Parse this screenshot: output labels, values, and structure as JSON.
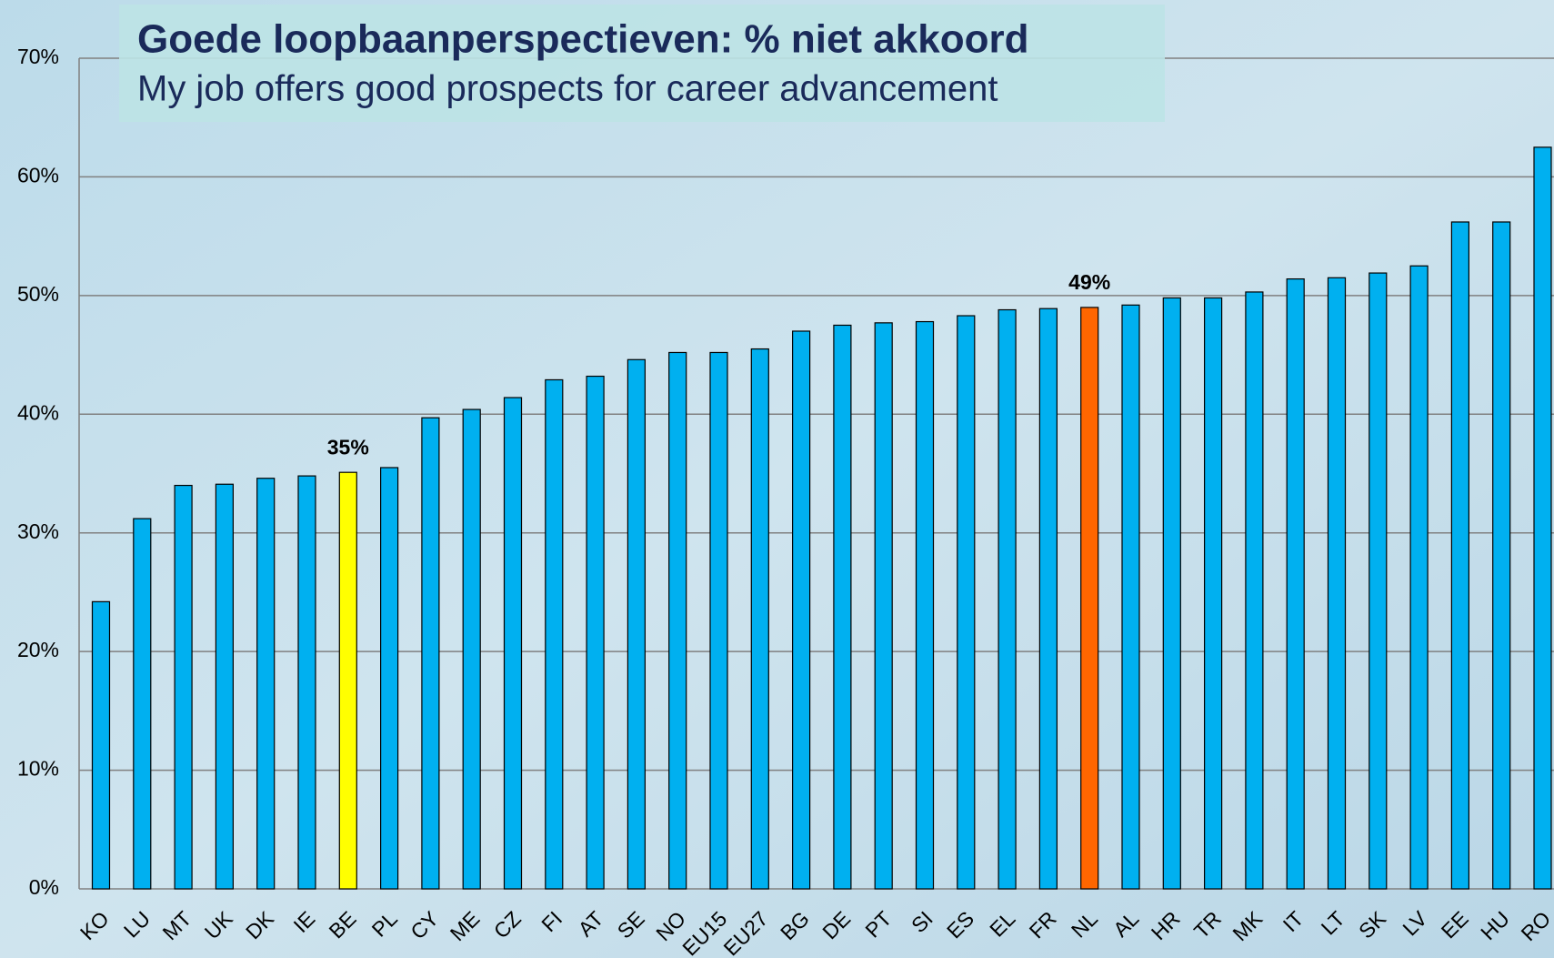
{
  "chart_data": {
    "type": "bar",
    "title": "Goede loopbaanperspectieven: % niet akkoord",
    "subtitle": "My job offers good prospects for career advancement",
    "categories": [
      "KO",
      "LU",
      "MT",
      "UK",
      "DK",
      "IE",
      "BE",
      "PL",
      "CY",
      "ME",
      "CZ",
      "FI",
      "AT",
      "SE",
      "NO",
      "EU15",
      "EU27",
      "BG",
      "DE",
      "PT",
      "SI",
      "ES",
      "EL",
      "FR",
      "NL",
      "AL",
      "HR",
      "TR",
      "MK",
      "IT",
      "LT",
      "SK",
      "LV",
      "EE",
      "HU",
      "RO"
    ],
    "values": [
      24.2,
      31.2,
      34.0,
      34.1,
      34.6,
      34.8,
      35.1,
      35.5,
      39.7,
      40.4,
      41.4,
      42.9,
      43.2,
      44.6,
      45.2,
      45.2,
      45.5,
      47.0,
      47.5,
      47.7,
      47.8,
      48.3,
      48.8,
      48.9,
      49.0,
      49.2,
      49.8,
      49.8,
      50.3,
      51.4,
      51.5,
      51.9,
      52.5,
      56.2,
      56.2,
      62.5
    ],
    "value_labels": [
      null,
      null,
      null,
      null,
      null,
      null,
      "35%",
      null,
      null,
      null,
      null,
      null,
      null,
      null,
      null,
      null,
      null,
      null,
      null,
      null,
      null,
      null,
      null,
      null,
      "49%",
      null,
      null,
      null,
      null,
      null,
      null,
      null,
      null,
      null,
      null,
      null
    ],
    "color": "#00b0f0",
    "colors": [
      "#00b0f0",
      "#00b0f0",
      "#00b0f0",
      "#00b0f0",
      "#00b0f0",
      "#00b0f0",
      "#ffff00",
      "#00b0f0",
      "#00b0f0",
      "#00b0f0",
      "#00b0f0",
      "#00b0f0",
      "#00b0f0",
      "#00b0f0",
      "#00b0f0",
      "#00b0f0",
      "#00b0f0",
      "#00b0f0",
      "#00b0f0",
      "#00b0f0",
      "#00b0f0",
      "#00b0f0",
      "#00b0f0",
      "#00b0f0",
      "#ff6600",
      "#00b0f0",
      "#00b0f0",
      "#00b0f0",
      "#00b0f0",
      "#00b0f0",
      "#00b0f0",
      "#00b0f0",
      "#00b0f0",
      "#00b0f0",
      "#00b0f0",
      "#00b0f0"
    ],
    "ylim": [
      0,
      70
    ],
    "yticks": [
      {
        "value": 0,
        "label": "0%"
      },
      {
        "value": 10,
        "label": "10%"
      },
      {
        "value": 20,
        "label": "20%"
      },
      {
        "value": 30,
        "label": "30%"
      },
      {
        "value": 40,
        "label": "40%"
      },
      {
        "value": 50,
        "label": "50%"
      },
      {
        "value": 60,
        "label": "60%"
      },
      {
        "value": 70,
        "label": "70%"
      }
    ],
    "grid": true
  }
}
